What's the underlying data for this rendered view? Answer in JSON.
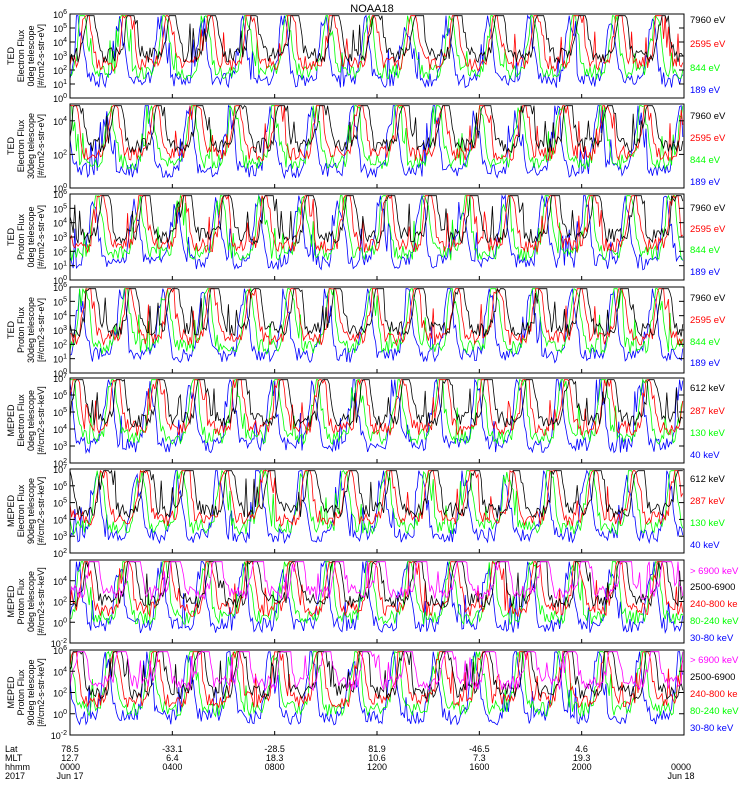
{
  "figure": {
    "title": "NOAA18"
  },
  "colors": {
    "black": "#000000",
    "red": "#ff0000",
    "green": "#00ff00",
    "blue": "#0000ff",
    "magenta": "#ff00ff"
  },
  "chart_data": [
    {
      "type": "line",
      "ylabel": [
        "TED",
        "Electron Flux",
        "0deg telescope",
        "[#/cm2-s-str-eV]"
      ],
      "yscale": "log",
      "ylim": [
        1,
        1000000
      ],
      "yticks": [
        {
          "base": "10",
          "exp": "0"
        },
        {
          "base": "10",
          "exp": "1"
        },
        {
          "base": "10",
          "exp": "2"
        },
        {
          "base": "10",
          "exp": "3"
        },
        {
          "base": "10",
          "exp": "4"
        },
        {
          "base": "10",
          "exp": "5"
        },
        {
          "base": "10",
          "exp": "6"
        }
      ],
      "series": [
        {
          "name": "7960 eV",
          "color": "#000000"
        },
        {
          "name": "2595 eV",
          "color": "#ff0000"
        },
        {
          "name": "844 eV",
          "color": "#00ff00"
        },
        {
          "name": "189 eV",
          "color": "#0000ff"
        }
      ]
    },
    {
      "type": "line",
      "ylabel": [
        "TED",
        "Electron Flux",
        "30deg telescope",
        "[#/cm2-s-str-eV]"
      ],
      "yscale": "log",
      "ylim": [
        1,
        100000
      ],
      "yticks": [
        {
          "base": "10",
          "exp": "0"
        },
        {
          "base": "10",
          "exp": "2"
        },
        {
          "base": "10",
          "exp": "4"
        }
      ],
      "series": [
        {
          "name": "7960 eV",
          "color": "#000000"
        },
        {
          "name": "2595 eV",
          "color": "#ff0000"
        },
        {
          "name": "844 eV",
          "color": "#00ff00"
        },
        {
          "name": "189 eV",
          "color": "#0000ff"
        }
      ]
    },
    {
      "type": "line",
      "ylabel": [
        "TED",
        "Proton Flux",
        "0deg telescope",
        "[#/cm2-s-str-eV]"
      ],
      "yscale": "log",
      "ylim": [
        1,
        1000000
      ],
      "yticks": [
        {
          "base": "10",
          "exp": "0"
        },
        {
          "base": "10",
          "exp": "1"
        },
        {
          "base": "10",
          "exp": "2"
        },
        {
          "base": "10",
          "exp": "3"
        },
        {
          "base": "10",
          "exp": "4"
        },
        {
          "base": "10",
          "exp": "5"
        },
        {
          "base": "10",
          "exp": "6"
        }
      ],
      "series": [
        {
          "name": "7960 eV",
          "color": "#000000"
        },
        {
          "name": "2595 eV",
          "color": "#ff0000"
        },
        {
          "name": "844 eV",
          "color": "#00ff00"
        },
        {
          "name": "189 eV",
          "color": "#0000ff"
        }
      ]
    },
    {
      "type": "line",
      "ylabel": [
        "TED",
        "Proton Flux",
        "30deg telescope",
        "[#/cm2-s-str-eV]"
      ],
      "yscale": "log",
      "ylim": [
        1,
        1000000
      ],
      "yticks": [
        {
          "base": "10",
          "exp": "0"
        },
        {
          "base": "10",
          "exp": "1"
        },
        {
          "base": "10",
          "exp": "2"
        },
        {
          "base": "10",
          "exp": "3"
        },
        {
          "base": "10",
          "exp": "4"
        },
        {
          "base": "10",
          "exp": "5"
        },
        {
          "base": "10",
          "exp": "6"
        }
      ],
      "series": [
        {
          "name": "7960 eV",
          "color": "#000000"
        },
        {
          "name": "2595 eV",
          "color": "#ff0000"
        },
        {
          "name": "844 eV",
          "color": "#00ff00"
        },
        {
          "name": "189 eV",
          "color": "#0000ff"
        }
      ]
    },
    {
      "type": "line",
      "ylabel": [
        "MEPED",
        "Electron Flux",
        "0deg telescope",
        "[#/cm2-s-str-keV]"
      ],
      "yscale": "log",
      "ylim": [
        100,
        10000000
      ],
      "yticks": [
        {
          "base": "10",
          "exp": "2"
        },
        {
          "base": "10",
          "exp": "3"
        },
        {
          "base": "10",
          "exp": "4"
        },
        {
          "base": "10",
          "exp": "5"
        },
        {
          "base": "10",
          "exp": "6"
        },
        {
          "base": "10",
          "exp": "7"
        }
      ],
      "series": [
        {
          "name": "612 keV",
          "color": "#000000"
        },
        {
          "name": "287 keV",
          "color": "#ff0000"
        },
        {
          "name": "130 keV",
          "color": "#00ff00"
        },
        {
          "name": "40 keV",
          "color": "#0000ff"
        }
      ]
    },
    {
      "type": "line",
      "ylabel": [
        "MEPED",
        "Electron Flux",
        "90deg telescope",
        "[#/cm2-s-str-keV]"
      ],
      "yscale": "log",
      "ylim": [
        100,
        10000000
      ],
      "yticks": [
        {
          "base": "10",
          "exp": "2"
        },
        {
          "base": "10",
          "exp": "3"
        },
        {
          "base": "10",
          "exp": "4"
        },
        {
          "base": "10",
          "exp": "5"
        },
        {
          "base": "10",
          "exp": "6"
        },
        {
          "base": "10",
          "exp": "7"
        }
      ],
      "series": [
        {
          "name": "612 keV",
          "color": "#000000"
        },
        {
          "name": "287 keV",
          "color": "#ff0000"
        },
        {
          "name": "130 keV",
          "color": "#00ff00"
        },
        {
          "name": "40 keV",
          "color": "#0000ff"
        }
      ]
    },
    {
      "type": "line",
      "ylabel": [
        "MEPED",
        "Proton Flux",
        "0deg telescope",
        "[#/cm2-s-str-keV]"
      ],
      "yscale": "log",
      "ylim": [
        0.01,
        1000000
      ],
      "yticks": [
        {
          "base": "10",
          "exp": "-2"
        },
        {
          "base": "10",
          "exp": "0"
        },
        {
          "base": "10",
          "exp": "2"
        },
        {
          "base": "10",
          "exp": "4"
        }
      ],
      "series": [
        {
          "name": "> 6900 keV",
          "color": "#ff00ff"
        },
        {
          "name": "2500-6900",
          "color": "#000000"
        },
        {
          "name": "240-800 ke",
          "color": "#ff0000"
        },
        {
          "name": "80-240 keV",
          "color": "#00ff00"
        },
        {
          "name": "30-80 keV",
          "color": "#0000ff"
        }
      ]
    },
    {
      "type": "line",
      "ylabel": [
        "MEPED",
        "Proton Flux",
        "90deg telescope",
        "[#/cm2-s-str-keV]"
      ],
      "yscale": "log",
      "ylim": [
        0.01,
        1000000
      ],
      "yticks": [
        {
          "base": "10",
          "exp": "-2"
        },
        {
          "base": "10",
          "exp": "0"
        },
        {
          "base": "10",
          "exp": "2"
        },
        {
          "base": "10",
          "exp": "4"
        },
        {
          "base": "10",
          "exp": "6"
        }
      ],
      "series": [
        {
          "name": "> 6900 keV",
          "color": "#ff00ff"
        },
        {
          "name": "2500-6900",
          "color": "#000000"
        },
        {
          "name": "240-800 ke",
          "color": "#ff0000"
        },
        {
          "name": "80-240 keV",
          "color": "#00ff00"
        },
        {
          "name": "30-80 keV",
          "color": "#0000ff"
        }
      ]
    }
  ],
  "xaxis": {
    "type": "time",
    "range": [
      "2017-06-17 00:00",
      "2017-06-18 00:00"
    ],
    "row_labels": [
      "Lat",
      "MLT",
      "hhmm",
      "2017"
    ],
    "ticks": [
      {
        "hours": 0,
        "lat": "78.5",
        "mlt": "12.7",
        "hhmm": "0000",
        "date": "Jun 17"
      },
      {
        "hours": 4,
        "lat": "-33.1",
        "mlt": "6.4",
        "hhmm": "0400",
        "date": ""
      },
      {
        "hours": 8,
        "lat": "-28.5",
        "mlt": "18.3",
        "hhmm": "0800",
        "date": ""
      },
      {
        "hours": 12,
        "lat": "81.9",
        "mlt": "10.6",
        "hhmm": "1200",
        "date": ""
      },
      {
        "hours": 16,
        "lat": "-46.5",
        "mlt": "7.3",
        "hhmm": "1600",
        "date": ""
      },
      {
        "hours": 20,
        "lat": "4.6",
        "mlt": "19.3",
        "hhmm": "2000",
        "date": ""
      },
      {
        "hours": 24,
        "lat": "",
        "mlt": "",
        "hhmm": "0000",
        "date": "Jun 18"
      }
    ]
  }
}
